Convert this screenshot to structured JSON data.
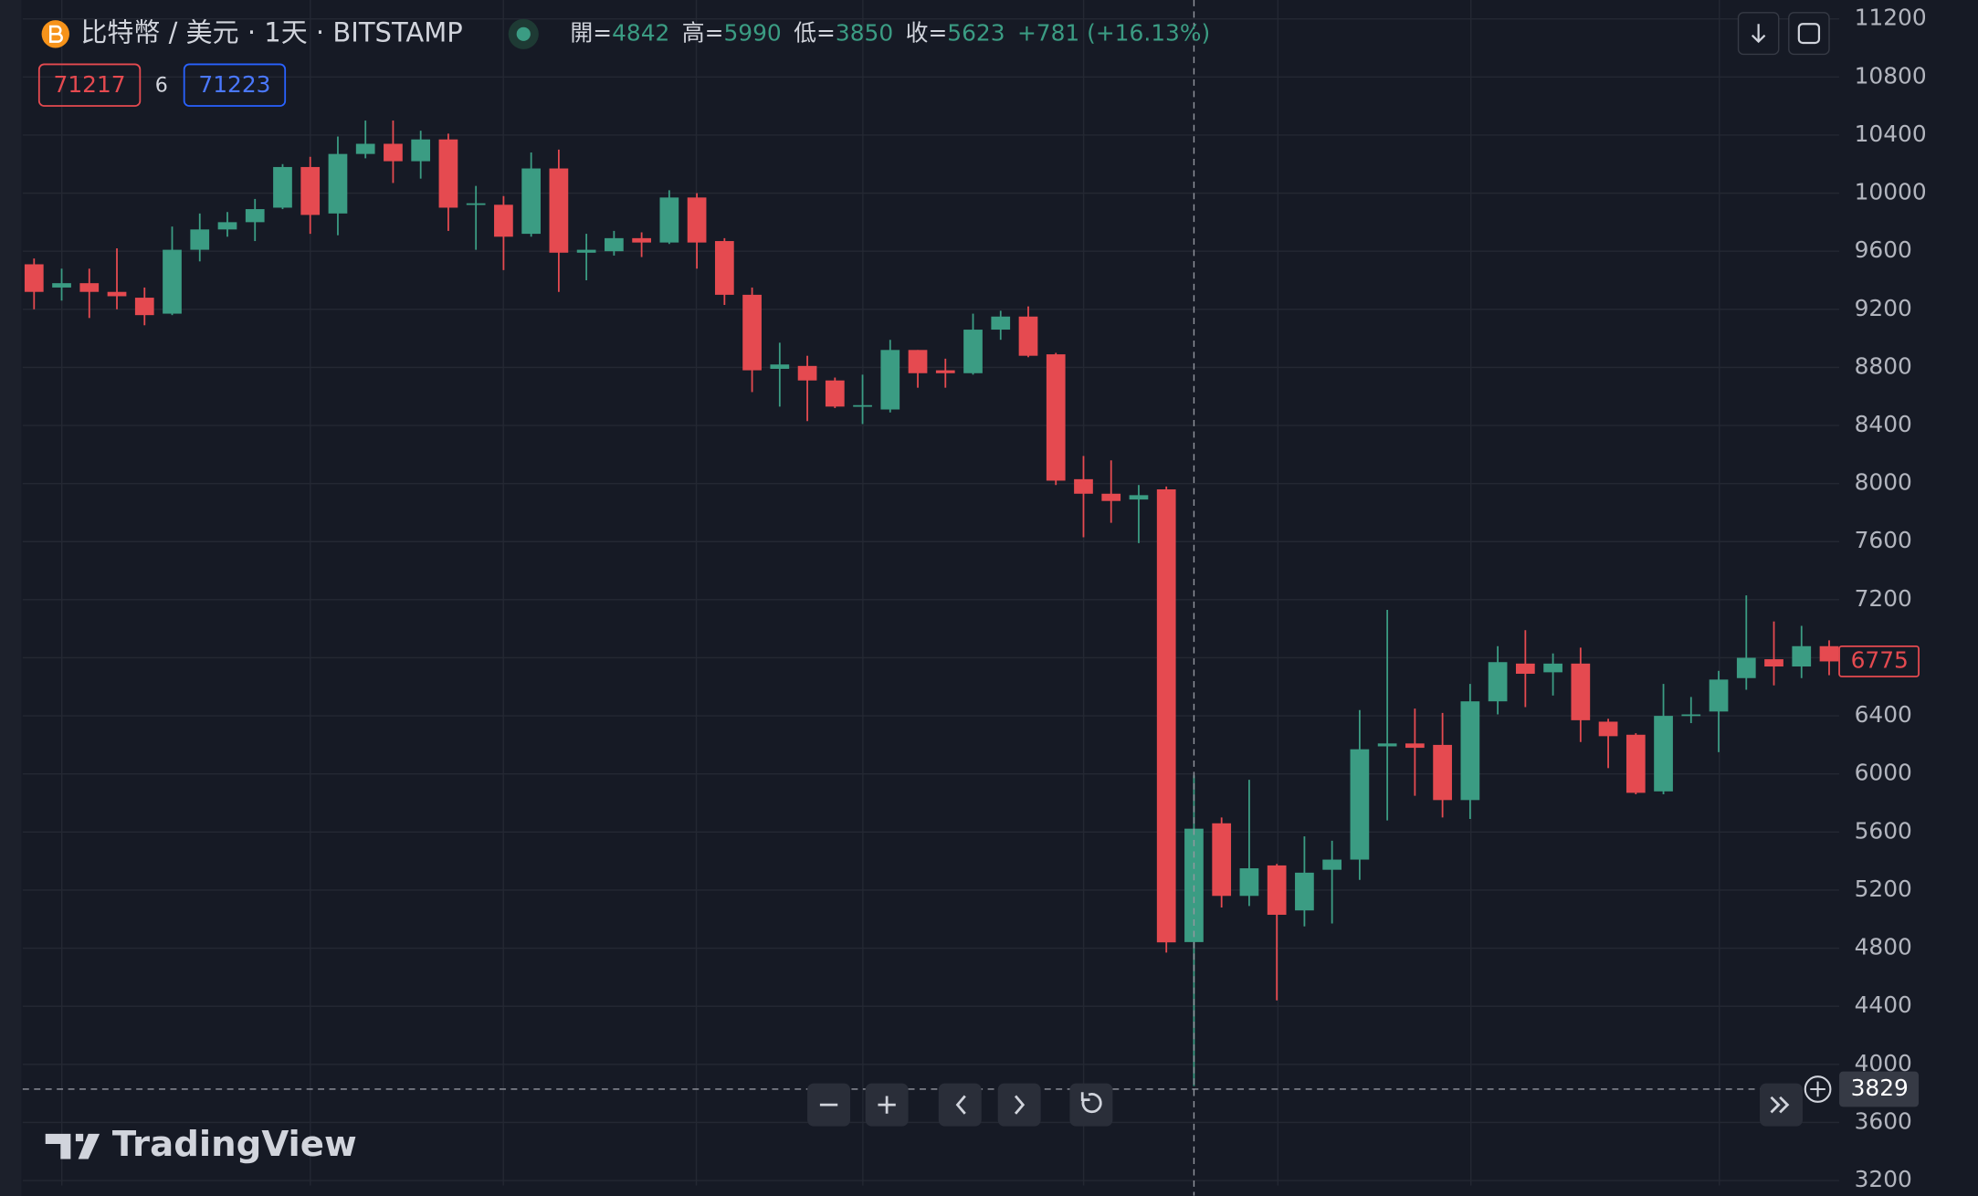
{
  "chart_data": {
    "type": "candlestick",
    "title": "比特幣 / 美元 · 1天 · BITSTAMP",
    "open": [
      9510,
      9350,
      9380,
      9320,
      9280,
      9170,
      9610,
      9750,
      9800,
      9900,
      10180,
      9860,
      10270,
      10340,
      10220,
      10370,
      9920,
      9920,
      9720,
      10170,
      9590,
      9600,
      9690,
      9660,
      9970,
      9670,
      9300,
      8790,
      8810,
      8710,
      8530,
      8510,
      8920,
      8780,
      8760,
      9060,
      9150,
      8890,
      8030,
      7930,
      7890,
      7960,
      4842,
      5660,
      5160,
      5370,
      5060,
      5340,
      5410,
      6190,
      6210,
      6200,
      5820,
      6500,
      6760,
      6700,
      6760,
      6360,
      6270,
      5880,
      6400,
      6430,
      6660,
      6790,
      6740,
      6880
    ],
    "high": [
      9550,
      9480,
      9480,
      9620,
      9350,
      9770,
      9860,
      9870,
      9960,
      10200,
      10250,
      10390,
      10500,
      10500,
      10430,
      10410,
      10050,
      9980,
      10280,
      10300,
      9720,
      9740,
      9730,
      10020,
      10000,
      9690,
      9350,
      8970,
      8880,
      8730,
      8750,
      8990,
      8920,
      8860,
      9170,
      9190,
      9220,
      8900,
      8190,
      8160,
      7990,
      7980,
      5990,
      5700,
      5960,
      5380,
      5570,
      5540,
      6440,
      7130,
      6450,
      6420,
      6620,
      6880,
      6990,
      6830,
      6870,
      6380,
      6280,
      6620,
      6530,
      6710,
      7230,
      7050,
      7020,
      6920
    ],
    "low": [
      9200,
      9260,
      9140,
      9200,
      9090,
      9160,
      9530,
      9700,
      9670,
      9890,
      9720,
      9710,
      10240,
      10070,
      10100,
      9740,
      9610,
      9470,
      9700,
      9320,
      9400,
      9570,
      9560,
      9650,
      9480,
      9230,
      8630,
      8530,
      8430,
      8520,
      8410,
      8490,
      8660,
      8660,
      8750,
      8990,
      8870,
      7990,
      7630,
      7730,
      7590,
      4770,
      3850,
      5080,
      5090,
      4440,
      4950,
      4970,
      5270,
      5680,
      5850,
      5700,
      5690,
      6410,
      6460,
      6540,
      6220,
      6040,
      5860,
      5860,
      6350,
      6150,
      6580,
      6610,
      6660,
      6680
    ],
    "close": [
      9320,
      9380,
      9320,
      9290,
      9160,
      9610,
      9750,
      9800,
      9890,
      10180,
      9850,
      10270,
      10340,
      10220,
      10370,
      9900,
      9930,
      9700,
      10170,
      9590,
      9610,
      9690,
      9660,
      9970,
      9660,
      9300,
      8780,
      8820,
      8710,
      8530,
      8540,
      8920,
      8760,
      8760,
      9060,
      9150,
      8880,
      8020,
      7930,
      7880,
      7920,
      4840,
      5623,
      5160,
      5350,
      5030,
      5320,
      5410,
      6170,
      6210,
      6180,
      5820,
      6500,
      6770,
      6690,
      6760,
      6370,
      6260,
      5870,
      6400,
      6410,
      6650,
      6800,
      6740,
      6880,
      6775
    ],
    "up_color": "#3b9c83",
    "down_color": "#e54a50",
    "ylim": [
      3200,
      11200
    ],
    "yticks": [
      11200,
      10800,
      10400,
      10000,
      9600,
      9200,
      8800,
      8400,
      8000,
      7600,
      7200,
      6800,
      6400,
      6000,
      5600,
      5200,
      4800,
      4400,
      4000,
      3600,
      3200
    ],
    "grid": true,
    "last_price": 6775,
    "crosshair_price": 3829,
    "legend": {
      "open_label": "開=",
      "open": 4842,
      "high_label": "高=",
      "high": 5990,
      "low_label": "低=",
      "low": 3850,
      "close_label": "收=",
      "close": 5623,
      "change": "+781",
      "change_percent": "(+16.13%)"
    },
    "bid": 71217,
    "spread": 6,
    "ask": 71223
  },
  "brand": "TradingView"
}
